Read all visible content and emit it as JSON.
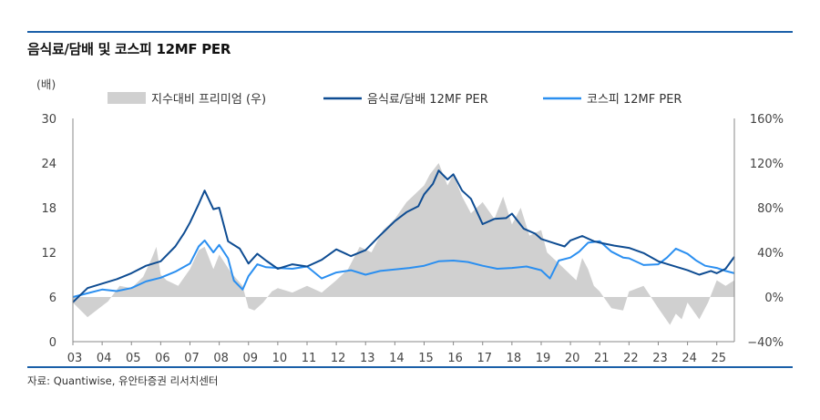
{
  "title": "음식료/담배 및 코스피 12MF PER",
  "unit_label": "(배)",
  "source": "자료: Quantiwise, 유안타증권 리서치센터",
  "colors": {
    "accent_rule": "#1a5fa8",
    "premium_area": "#d0d0d0",
    "food_line": "#0e4c92",
    "kospi_line": "#2b8ff0"
  },
  "chart_data": {
    "type": "line",
    "title": "음식료/담배 및 코스피 12MF PER",
    "x_labels": [
      "03",
      "04",
      "05",
      "06",
      "07",
      "08",
      "09",
      "10",
      "11",
      "12",
      "13",
      "14",
      "15",
      "16",
      "17",
      "18",
      "19",
      "20",
      "21",
      "22",
      "23",
      "24",
      "25"
    ],
    "xlim": [
      2003.0,
      2025.6
    ],
    "y_left": {
      "label": "(배)",
      "range": [
        0,
        30
      ],
      "ticks": [
        "0",
        "6",
        "12",
        "18",
        "24",
        "30"
      ]
    },
    "y_right": {
      "range": [
        -40,
        160
      ],
      "ticks": [
        "−40%",
        "0%",
        "40%",
        "80%",
        "120%",
        "160%"
      ]
    },
    "legend_position": "top",
    "series": [
      {
        "name": "지수대비 프리미엄 (우)",
        "kind": "area",
        "axis": "right",
        "x": [
          2003.0,
          2003.5,
          2003.8,
          2004.2,
          2004.6,
          2005.0,
          2005.4,
          2005.7,
          2005.85,
          2006.0,
          2006.2,
          2006.6,
          2007.0,
          2007.3,
          2007.5,
          2007.8,
          2008.0,
          2008.4,
          2008.8,
          2009.0,
          2009.2,
          2009.5,
          2009.8,
          2010.0,
          2010.5,
          2011.0,
          2011.5,
          2012.0,
          2012.4,
          2012.8,
          2013.2,
          2013.6,
          2014.0,
          2014.4,
          2014.8,
          2015.0,
          2015.2,
          2015.5,
          2015.8,
          2016.0,
          2016.3,
          2016.6,
          2017.0,
          2017.4,
          2017.7,
          2018.0,
          2018.3,
          2018.6,
          2019.0,
          2019.2,
          2019.6,
          2020.0,
          2020.2,
          2020.4,
          2020.6,
          2020.8,
          2021.0,
          2021.4,
          2021.8,
          2022.0,
          2022.5,
          2023.0,
          2023.4,
          2023.6,
          2023.8,
          2024.0,
          2024.4,
          2024.7,
          2025.0,
          2025.3,
          2025.6
        ],
        "values": [
          -5,
          -18,
          -12,
          -4,
          10,
          8,
          18,
          35,
          45,
          20,
          15,
          10,
          25,
          42,
          45,
          25,
          38,
          22,
          10,
          -10,
          -12,
          -5,
          5,
          8,
          4,
          10,
          4,
          15,
          25,
          45,
          40,
          60,
          70,
          85,
          95,
          100,
          110,
          120,
          100,
          110,
          90,
          75,
          85,
          70,
          90,
          65,
          80,
          55,
          60,
          40,
          30,
          20,
          15,
          35,
          25,
          10,
          5,
          -10,
          -12,
          5,
          10,
          -10,
          -25,
          -15,
          -20,
          -5,
          -20,
          -5,
          15,
          10,
          15
        ]
      },
      {
        "name": "음식료/담배 12MF PER",
        "kind": "line",
        "axis": "left",
        "x": [
          2003.0,
          2003.5,
          2004.0,
          2004.5,
          2005.0,
          2005.5,
          2006.0,
          2006.5,
          2006.8,
          2007.0,
          2007.3,
          2007.5,
          2007.8,
          2008.0,
          2008.3,
          2008.7,
          2009.0,
          2009.3,
          2009.6,
          2010.0,
          2010.5,
          2011.0,
          2011.5,
          2012.0,
          2012.5,
          2013.0,
          2013.5,
          2014.0,
          2014.4,
          2014.8,
          2015.0,
          2015.3,
          2015.5,
          2015.8,
          2016.0,
          2016.3,
          2016.6,
          2017.0,
          2017.4,
          2017.8,
          2018.0,
          2018.4,
          2018.8,
          2019.0,
          2019.4,
          2019.8,
          2020.0,
          2020.4,
          2020.8,
          2021.0,
          2021.5,
          2022.0,
          2022.5,
          2023.0,
          2023.5,
          2024.0,
          2024.4,
          2024.8,
          2025.0,
          2025.3,
          2025.6
        ],
        "values": [
          5.3,
          7.2,
          7.8,
          8.4,
          9.2,
          10.2,
          10.8,
          12.8,
          14.6,
          16.0,
          18.5,
          20.3,
          17.8,
          18.0,
          13.5,
          12.5,
          10.5,
          11.8,
          10.9,
          9.8,
          10.4,
          10.1,
          11.0,
          12.4,
          11.5,
          12.3,
          14.3,
          16.2,
          17.4,
          18.2,
          19.8,
          21.2,
          23.0,
          21.8,
          22.5,
          20.3,
          19.2,
          15.8,
          16.5,
          16.6,
          17.2,
          15.2,
          14.5,
          13.8,
          13.3,
          12.8,
          13.6,
          14.2,
          13.5,
          13.3,
          12.9,
          12.6,
          11.9,
          10.8,
          10.2,
          9.6,
          9.0,
          9.5,
          9.2,
          9.8,
          11.4
        ]
      },
      {
        "name": "코스피 12MF PER",
        "kind": "line",
        "axis": "left",
        "x": [
          2003.0,
          2003.5,
          2004.0,
          2004.5,
          2005.0,
          2005.5,
          2006.0,
          2006.5,
          2007.0,
          2007.3,
          2007.5,
          2007.8,
          2008.0,
          2008.3,
          2008.5,
          2008.8,
          2009.0,
          2009.3,
          2009.6,
          2010.0,
          2010.5,
          2011.0,
          2011.5,
          2012.0,
          2012.5,
          2013.0,
          2013.5,
          2014.0,
          2014.5,
          2015.0,
          2015.5,
          2016.0,
          2016.5,
          2017.0,
          2017.5,
          2018.0,
          2018.5,
          2019.0,
          2019.3,
          2019.6,
          2020.0,
          2020.3,
          2020.6,
          2021.0,
          2021.4,
          2021.8,
          2022.0,
          2022.5,
          2023.0,
          2023.3,
          2023.6,
          2024.0,
          2024.3,
          2024.6,
          2025.0,
          2025.3,
          2025.6
        ],
        "values": [
          6.0,
          6.5,
          7.0,
          6.8,
          7.2,
          8.1,
          8.6,
          9.4,
          10.5,
          12.8,
          13.6,
          12.0,
          13.0,
          11.2,
          8.2,
          7.0,
          8.8,
          10.4,
          10.0,
          9.9,
          9.8,
          10.1,
          8.5,
          9.3,
          9.6,
          9.0,
          9.5,
          9.7,
          9.9,
          10.2,
          10.8,
          10.9,
          10.7,
          10.2,
          9.8,
          9.9,
          10.1,
          9.6,
          8.5,
          10.9,
          11.3,
          12.1,
          13.3,
          13.5,
          12.1,
          11.3,
          11.2,
          10.3,
          10.4,
          11.3,
          12.5,
          11.8,
          10.9,
          10.2,
          9.9,
          9.5,
          9.2
        ]
      }
    ]
  }
}
